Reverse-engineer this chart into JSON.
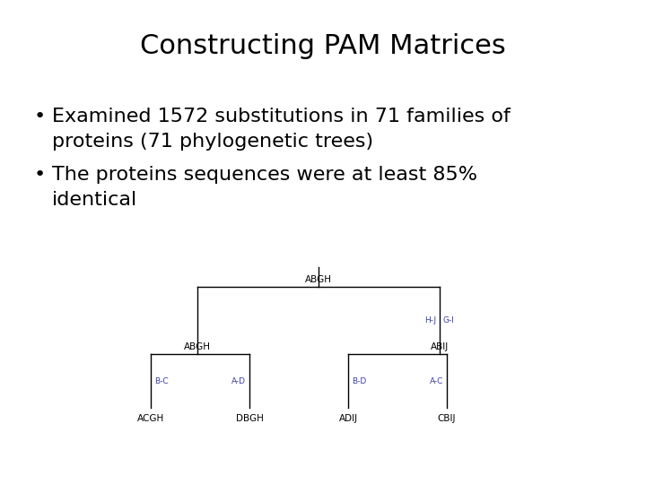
{
  "title": "Constructing PAM Matrices",
  "title_fontsize": 22,
  "bg_color": "#ffffff",
  "text_color": "#000000",
  "bullet_fontsize": 16,
  "bullet1_line1": "Examined 1572 substitutions in 71 families of",
  "bullet1_line2": "proteins (71 phylogenetic trees)",
  "bullet2_line1": "The proteins sequences were at least 85%",
  "bullet2_line2": "identical",
  "tree_label_color": "#000000",
  "tree_edge_label_color": "#3a3ab0",
  "tree_label_fontsize": 7.5,
  "tree_edge_label_fontsize": 6.5,
  "root_label": "ABGH",
  "left_inner_label": "ABGH",
  "right_inner_label": "ABIJ",
  "leaf_labels": [
    "ACGH",
    "DBGH",
    "ADIJ",
    "CBIJ"
  ],
  "edge_labels_top": [
    "H-J",
    "G-I"
  ],
  "edge_labels_left": [
    "B-C",
    "A-D"
  ],
  "edge_labels_right": [
    "B-D",
    "A-C"
  ]
}
